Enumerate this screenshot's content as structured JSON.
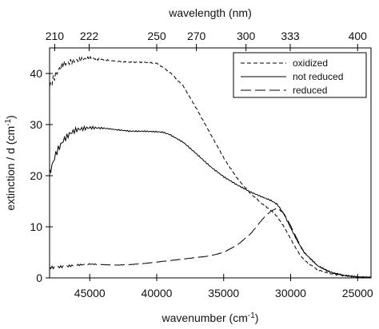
{
  "chart_data": {
    "type": "line",
    "top_axis": {
      "label": "wavelength (nm)",
      "ticks": [
        "210",
        "222",
        "250",
        "270",
        "300",
        "333",
        "400"
      ]
    },
    "xlabel": "wavenumber (cm",
    "xlabel_sup": "-1",
    "xlabel_close": ")",
    "ylabel": "extinction / d (cm",
    "ylabel_sup": "-1",
    "ylabel_close": ")",
    "x_reversed": true,
    "xlim": [
      48000,
      24000
    ],
    "ylim": [
      0,
      45
    ],
    "x_ticks": [
      45000,
      40000,
      35000,
      30000,
      25000
    ],
    "x_tick_labels": [
      "45000",
      "40000",
      "35000",
      "30000",
      "25000"
    ],
    "y_ticks": [
      0,
      10,
      20,
      30,
      40
    ],
    "y_tick_labels": [
      "0",
      "10",
      "20",
      "30",
      "40"
    ],
    "legend_position": "top-right",
    "series": [
      {
        "name": "oxidized",
        "style": "short-dash",
        "x": [
          48000,
          47500,
          47000,
          46000,
          45000,
          44000,
          43000,
          42000,
          41000,
          40000,
          39000,
          38000,
          37000,
          36000,
          35000,
          34000,
          33000,
          32000,
          31500,
          31000,
          30500,
          30000,
          29500,
          29000,
          28000,
          27000,
          26000,
          25000,
          24000
        ],
        "y": [
          37.5,
          40.0,
          41.8,
          42.6,
          43.0,
          42.7,
          42.4,
          42.2,
          42.2,
          42.0,
          40.2,
          37.5,
          33.0,
          28.2,
          23.5,
          19.5,
          16.5,
          14.2,
          13.3,
          12.0,
          10.0,
          7.6,
          5.3,
          3.5,
          1.6,
          0.8,
          0.4,
          0.15,
          0.1
        ]
      },
      {
        "name": "not reduced",
        "style": "solid",
        "x": [
          48000,
          47500,
          47000,
          46500,
          46000,
          45000,
          44000,
          43000,
          42000,
          41000,
          40000,
          39500,
          39000,
          38000,
          37000,
          36000,
          35000,
          34000,
          33000,
          32000,
          31500,
          31000,
          30500,
          30000,
          29500,
          29000,
          28000,
          27000,
          26000,
          25000,
          24000
        ],
        "y": [
          20.5,
          24.5,
          26.8,
          28.2,
          29.0,
          29.4,
          29.3,
          29.0,
          28.7,
          28.7,
          28.6,
          28.5,
          28.0,
          26.5,
          24.2,
          21.8,
          19.8,
          18.2,
          16.8,
          15.7,
          15.2,
          14.4,
          12.5,
          9.8,
          7.2,
          5.0,
          2.4,
          1.1,
          0.5,
          0.2,
          0.1
        ]
      },
      {
        "name": "reduced",
        "style": "long-dash",
        "x": [
          48000,
          47000,
          46000,
          45000,
          44000,
          43000,
          42000,
          41000,
          40000,
          39000,
          38000,
          37000,
          36000,
          35000,
          34000,
          33000,
          32500,
          32000,
          31500,
          31000,
          30500,
          30000,
          29500,
          29000,
          28000,
          27000,
          26000,
          25000,
          24000
        ],
        "y": [
          2.0,
          2.2,
          2.5,
          2.7,
          2.6,
          2.5,
          2.6,
          2.8,
          3.1,
          3.4,
          3.7,
          4.0,
          4.3,
          5.0,
          6.4,
          8.6,
          10.2,
          11.8,
          13.0,
          13.7,
          12.6,
          10.2,
          7.5,
          5.0,
          2.4,
          1.0,
          0.5,
          0.2,
          0.1
        ]
      }
    ]
  }
}
